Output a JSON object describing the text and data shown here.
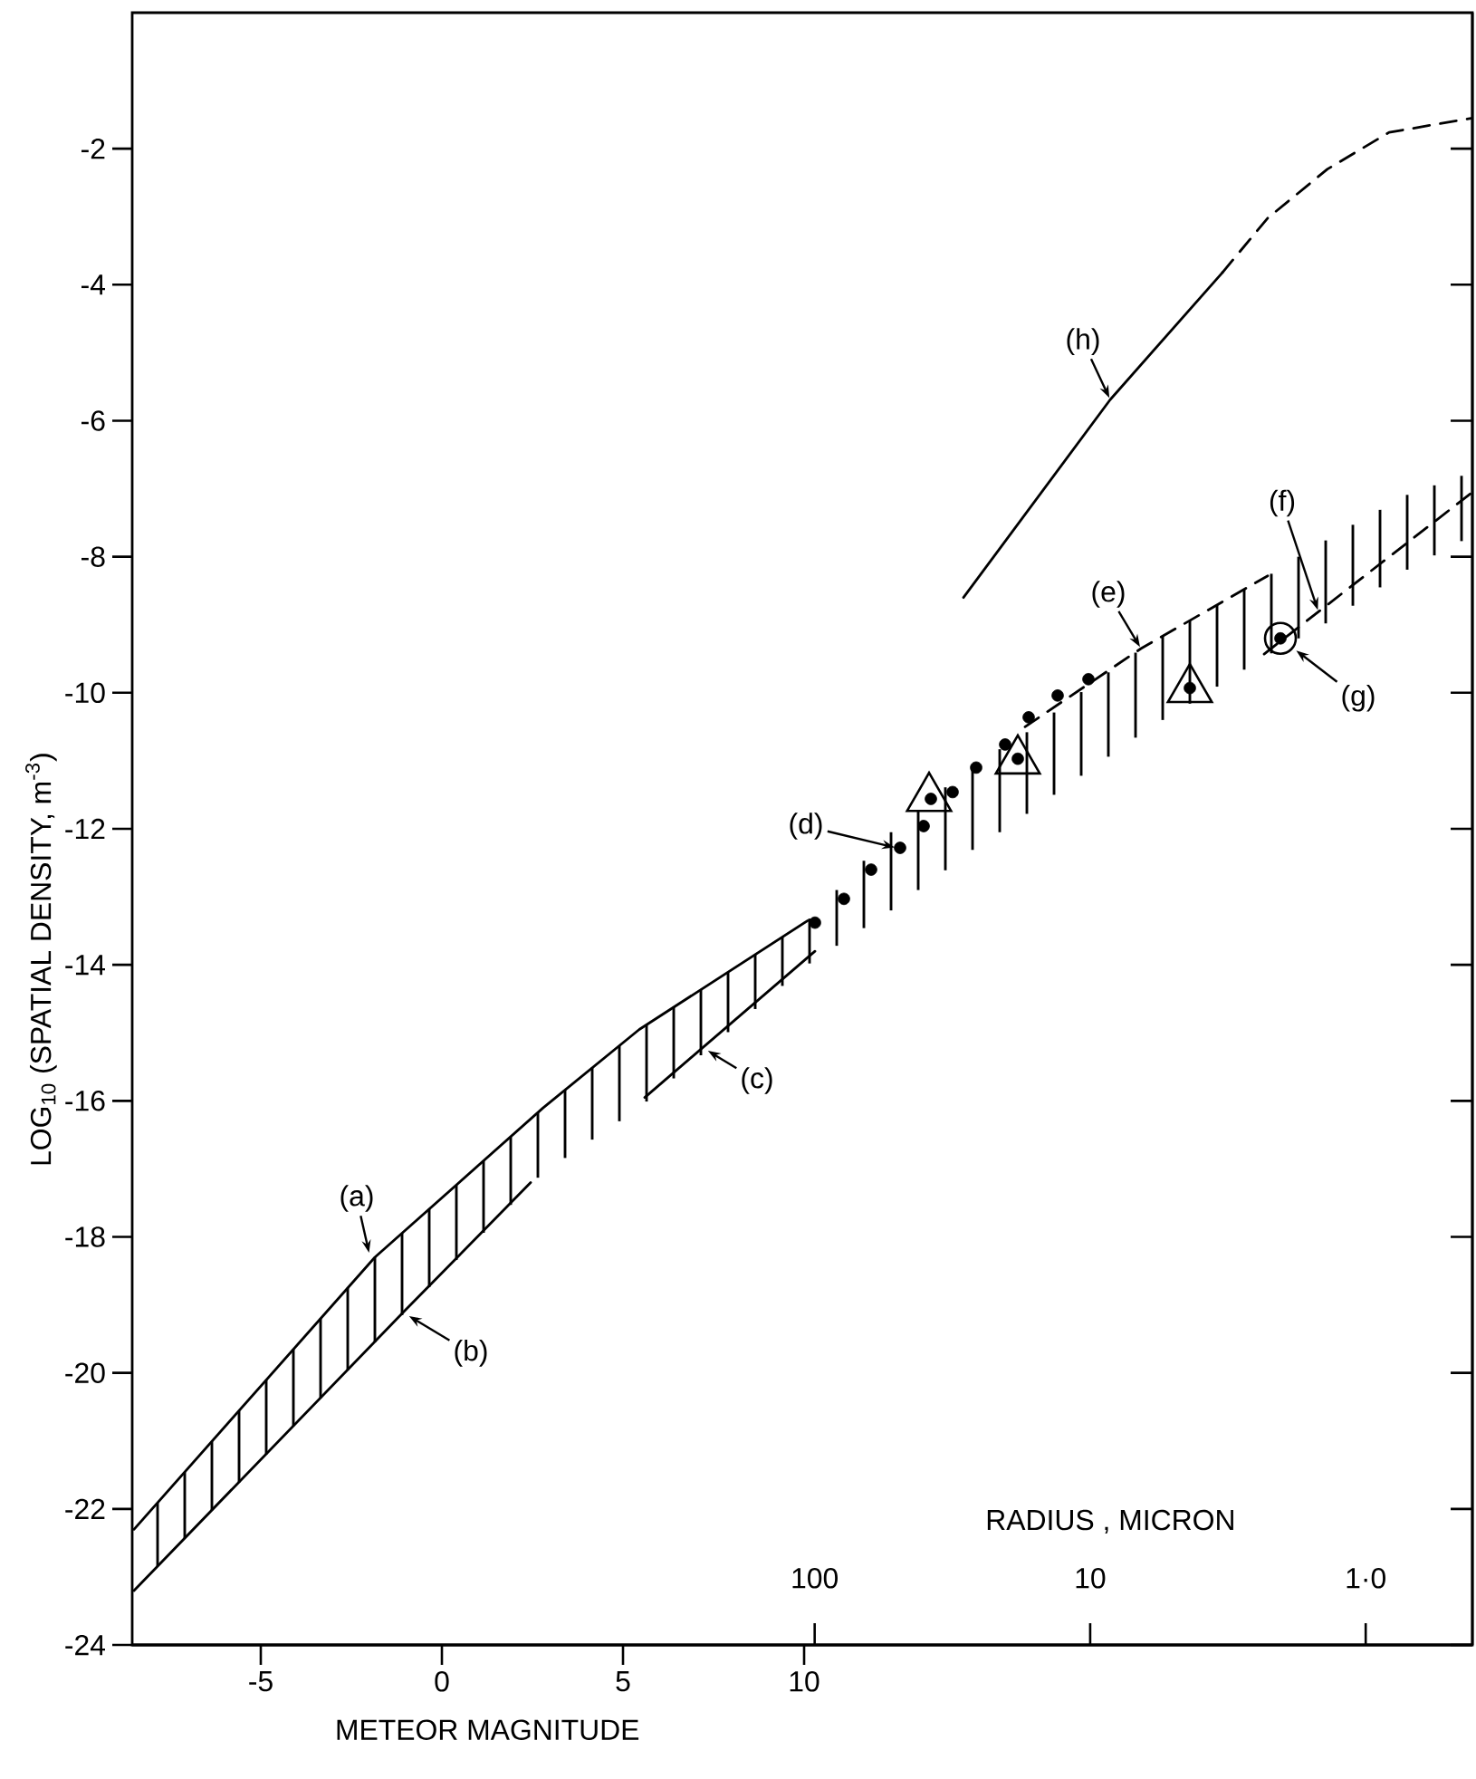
{
  "chart_data": {
    "type": "line",
    "xlabel": "METEOR MAGNITUDE",
    "ylabel": "LOG$_{10}$ (SPATIAL DENSITY, m$^{-3}$)",
    "x2label": "RADIUS , MICRON",
    "xlim": [
      -8.55,
      28.45
    ],
    "xticks": [
      -5,
      0,
      5,
      10
    ],
    "x2lim": [
      30000,
      0.41
    ],
    "x2ticks": [
      100,
      10,
      {
        "value": 1,
        "label": "1·0"
      }
    ],
    "log": "x2",
    "ylim": [
      -24,
      0
    ],
    "yticks": [
      -24,
      -22,
      -20,
      -18,
      -16,
      -14,
      -12,
      -10,
      -8,
      -6,
      -4,
      -2
    ],
    "series": [
      {
        "type": "bar",
        "color": "#000000",
        "x": [
          -7.85,
          -7.1,
          -6.35,
          -5.6,
          -4.85,
          -4.1,
          -3.35,
          -2.6,
          -1.85,
          -1.1,
          -0.35,
          0.4,
          1.15,
          1.9,
          2.65,
          3.4,
          4.15,
          4.9,
          5.65,
          6.4,
          7.15,
          7.9,
          8.65,
          9.4,
          10.15,
          10.9,
          11.65,
          12.4,
          13.15,
          13.9,
          14.65,
          15.4,
          16.15,
          16.9,
          17.65,
          18.4,
          19.15,
          19.9,
          20.65,
          21.4,
          22.15,
          22.9,
          23.65,
          24.4,
          25.15,
          25.9,
          26.65,
          27.4,
          28.15
        ],
        "base": [
          -22.84,
          -22.43,
          -22.02,
          -21.61,
          -21.2,
          -20.78,
          -20.37,
          -19.96,
          -19.55,
          -19.15,
          -18.74,
          -18.34,
          -17.94,
          -17.53,
          -17.13,
          -16.84,
          -16.57,
          -16.3,
          -16.01,
          -15.67,
          -15.33,
          -14.99,
          -14.65,
          -14.31,
          -13.98,
          -13.72,
          -13.46,
          -13.2,
          -12.9,
          -12.61,
          -12.31,
          -12.05,
          -11.78,
          -11.5,
          -11.22,
          -10.94,
          -10.66,
          -10.4,
          -10.16,
          -9.91,
          -9.66,
          -9.42,
          -9.2,
          -8.98,
          -8.72,
          -8.45,
          -8.19,
          -7.98,
          -7.77
        ],
        "values": [
          0.93,
          0.97,
          1.01,
          1.05,
          1.1,
          1.13,
          1.17,
          1.21,
          1.25,
          1.2,
          1.15,
          1.1,
          1.06,
          1.0,
          0.96,
          1.0,
          1.06,
          1.11,
          1.13,
          1.05,
          0.96,
          0.88,
          0.8,
          0.72,
          0.66,
          0.82,
          0.99,
          1.15,
          1.18,
          1.22,
          1.24,
          1.22,
          1.2,
          1.21,
          1.23,
          1.24,
          1.25,
          1.23,
          1.22,
          1.2,
          1.18,
          1.17,
          1.2,
          1.22,
          1.19,
          1.14,
          1.1,
          1.03,
          0.96
        ]
      },
      {
        "color": "#000000",
        "line_style": "solid",
        "x": [
          -8.5,
          -1.85,
          2.8,
          5.45,
          10.1
        ],
        "values": [
          -22.3,
          -18.3,
          -16.1,
          -14.95,
          -13.35
        ]
      },
      {
        "color": "#000000",
        "line_style": "solid",
        "x": [
          -8.5,
          -1.05,
          2.45
        ],
        "values": [
          -23.2,
          -19.1,
          -17.2
        ]
      },
      {
        "color": "#000000",
        "line_style": "solid",
        "x": [
          5.6,
          10.3
        ],
        "values": [
          -15.95,
          -13.8
        ]
      },
      {
        "color": "#000000",
        "line_style": "dashed",
        "x": [
          16.1,
          19.3,
          22.8
        ],
        "values": [
          -10.5,
          -9.35,
          -8.28
        ]
      },
      {
        "color": "#000000",
        "line_style": "dashed",
        "x": [
          22.7,
          28.45
        ],
        "values": [
          -9.43,
          -7.05
        ]
      },
      {
        "color": "#000000",
        "line_style": "solid",
        "x": [
          14.4,
          18.45,
          21.55
        ],
        "values": [
          -8.6,
          -5.69,
          -3.82
        ]
      },
      {
        "color": "#000000",
        "line_style": "dashed",
        "x": [
          21.55,
          22.8,
          24.45,
          26.15,
          28.45
        ],
        "values": [
          -3.82,
          -3.02,
          -2.3,
          -1.76,
          -1.55
        ]
      },
      {
        "type": "scatter",
        "color": "#000000",
        "marker": "triangle",
        "x": [
          13.45,
          15.9,
          20.65
        ],
        "values": [
          -11.55,
          -11.0,
          -9.95
        ]
      },
      {
        "type": "scatter",
        "color": "#000000",
        "marker": "circle",
        "x": [
          23.15
        ],
        "values": [
          -9.2
        ]
      },
      {
        "type": "scatter",
        "color": "#000000",
        "marker": "circle",
        "x": [
          10.3,
          11.1,
          11.85,
          12.65,
          13.3,
          13.5,
          14.1,
          14.75,
          15.55,
          15.9,
          16.2,
          17.0,
          17.85,
          20.65,
          23.15
        ],
        "values": [
          -13.38,
          -13.03,
          -12.6,
          -12.28,
          -11.96,
          -11.56,
          -11.46,
          -11.1,
          -10.76,
          -10.97,
          -10.36,
          -10.04,
          -9.8,
          -9.93,
          -9.2
        ]
      }
    ],
    "annotations": [
      {
        "text": "(a)",
        "x": -2.0,
        "y": -18.26
      },
      {
        "text": "(b)",
        "x": -0.95,
        "y": -19.15
      },
      {
        "text": "(c)",
        "x": 7.3,
        "y": -15.25
      },
      {
        "text": "(d)",
        "x": 12.55,
        "y": -12.28
      },
      {
        "text": "(e)",
        "x": 19.3,
        "y": -9.35
      },
      {
        "text": "(f)",
        "x": 24.2,
        "y": -8.81
      },
      {
        "text": "(g)",
        "x": 23.15,
        "y": -9.2
      },
      {
        "text": "(h)",
        "x": 18.45,
        "y": -5.69
      }
    ]
  }
}
